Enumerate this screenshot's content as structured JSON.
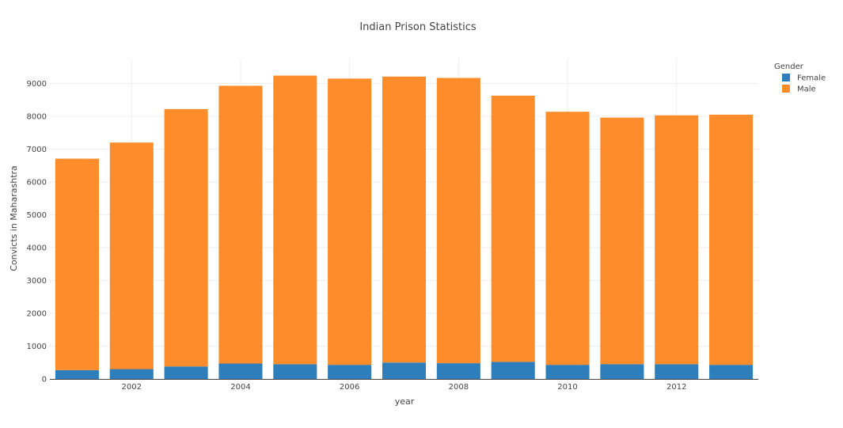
{
  "chart_data": {
    "type": "bar",
    "stacked": true,
    "title": "Indian Prison Statistics",
    "xlabel": "year",
    "ylabel": "Convicts in Maharashtra",
    "x": [
      2001,
      2002,
      2003,
      2004,
      2005,
      2006,
      2007,
      2008,
      2009,
      2010,
      2011,
      2012,
      2013
    ],
    "x_tick_labels": [
      "2002",
      "2004",
      "2006",
      "2008",
      "2010",
      "2012"
    ],
    "x_tick_values": [
      2002,
      2004,
      2006,
      2008,
      2010,
      2012
    ],
    "y_ticks": [
      0,
      1000,
      2000,
      3000,
      4000,
      5000,
      6000,
      7000,
      8000,
      9000
    ],
    "y_tick_labels": [
      "0",
      "1000",
      "2000",
      "3000",
      "4000",
      "5000",
      "6000",
      "7000",
      "8000",
      "9000"
    ],
    "ylim": [
      0,
      9760
    ],
    "legend_title": "Gender",
    "legend_position": "top-right",
    "grid": true,
    "series": [
      {
        "name": "Female",
        "color": "#2e7ebb",
        "values": [
          270,
          300,
          380,
          470,
          450,
          430,
          500,
          480,
          520,
          430,
          450,
          450,
          430
        ]
      },
      {
        "name": "Male",
        "color": "#ff8c2a",
        "values": [
          6440,
          6900,
          7840,
          8460,
          8790,
          8720,
          8710,
          8690,
          8110,
          7710,
          7510,
          7580,
          7620
        ]
      }
    ]
  }
}
